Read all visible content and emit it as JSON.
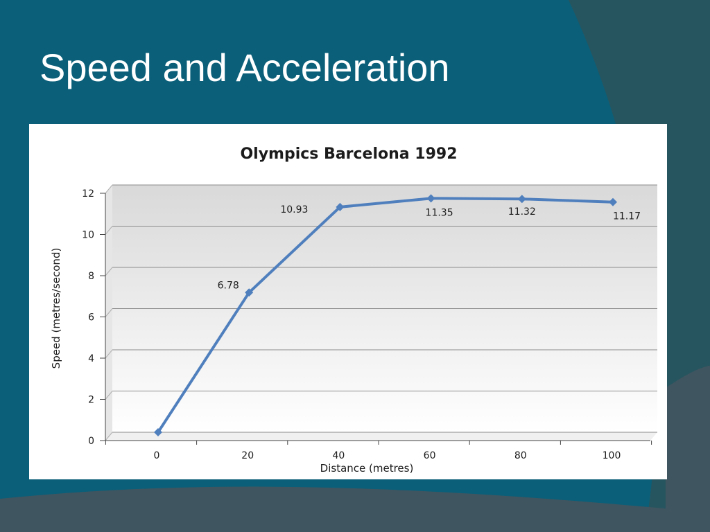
{
  "slide": {
    "title": "Speed and Acceleration"
  },
  "colors": {
    "background": "#0b5f79",
    "accent_dark": "#27555f",
    "accent_gray": "#3f5560",
    "series_line": "#4f7fbd",
    "plot_area_top": "#d9d9d9",
    "plot_area_bottom": "#ffffff"
  },
  "chart_data": {
    "type": "line",
    "title": "Olympics Barcelona 1992",
    "xlabel": "Distance (metres)",
    "ylabel": "Speed (metres/second)",
    "x": [
      0,
      20,
      40,
      60,
      80,
      100
    ],
    "x_tick_labels": [
      "0",
      "20",
      "40",
      "60",
      "80",
      "100"
    ],
    "y_tick_labels": [
      "0",
      "2",
      "4",
      "6",
      "8",
      "10",
      "12"
    ],
    "ylim": [
      0,
      12
    ],
    "grid": true,
    "series": [
      {
        "values": [
          0,
          6.78,
          10.93,
          11.35,
          11.32,
          11.17
        ],
        "data_labels": [
          "",
          "6.78",
          "10.93",
          "11.35",
          "11.32",
          "11.17"
        ],
        "marker": "diamond"
      }
    ]
  }
}
